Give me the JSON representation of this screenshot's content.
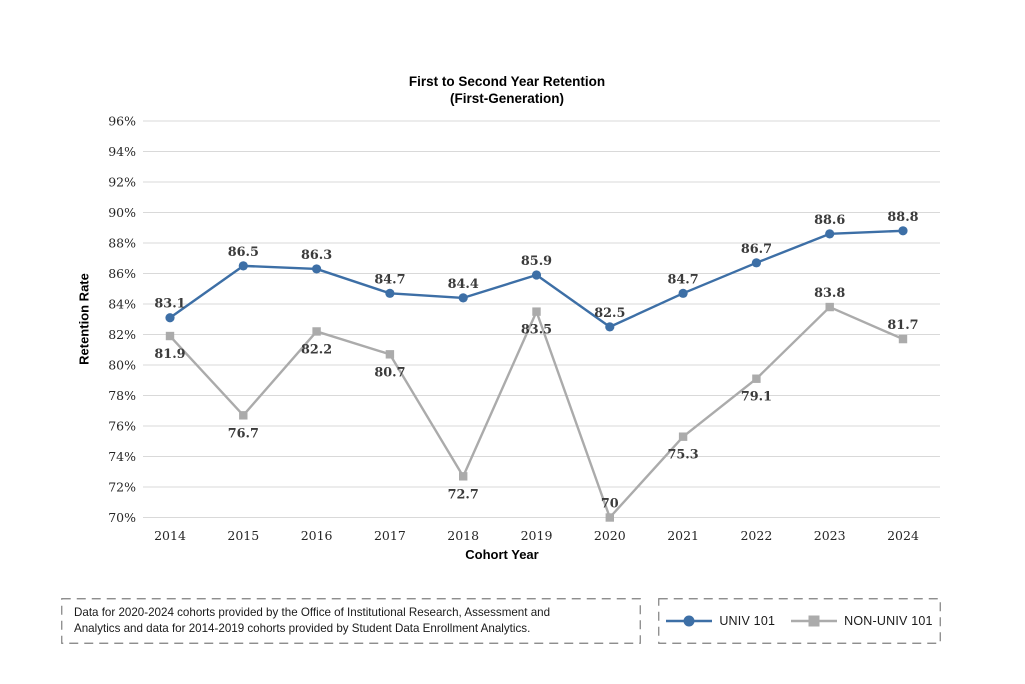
{
  "chart": {
    "title_line1": "First to Second Year Retention",
    "title_line2": "(First-Generation)",
    "y_axis_title": "Retention Rate",
    "x_axis_title": "Cohort Year"
  },
  "chart_data": {
    "type": "line",
    "title": "First to Second Year Retention (First-Generation)",
    "xlabel": "Cohort Year",
    "ylabel": "Retention Rate",
    "categories": [
      "2014",
      "2015",
      "2016",
      "2017",
      "2018",
      "2019",
      "2020",
      "2021",
      "2022",
      "2023",
      "2024"
    ],
    "series": [
      {
        "name": "UNIV 101",
        "color": "#3D6FA6",
        "marker": "circle",
        "values": [
          83.1,
          86.5,
          86.3,
          84.7,
          84.4,
          85.9,
          82.5,
          84.7,
          86.7,
          88.6,
          88.8
        ],
        "label_positions": [
          "above",
          "above",
          "above",
          "above",
          "above",
          "above",
          "above",
          "above",
          "above",
          "above",
          "above"
        ]
      },
      {
        "name": "NON-UNIV 101",
        "color": "#ABABAB",
        "marker": "square",
        "values": [
          81.9,
          76.7,
          82.2,
          80.7,
          72.7,
          83.5,
          70,
          75.3,
          79.1,
          83.8,
          81.7
        ],
        "label_positions": [
          "below",
          "below",
          "below",
          "below",
          "below",
          "below",
          "above",
          "below",
          "below",
          "above",
          "above"
        ]
      }
    ],
    "ylim": [
      70,
      96
    ],
    "ytick_step": 2,
    "ytick_suffix": "%",
    "grid": "horizontal",
    "gridline_color": "#D9D9D9",
    "tick_label_color": "#262626",
    "data_label_color": "#3B3B3B",
    "legend_position": "bottom-right"
  },
  "footnote": {
    "line1": "Data for 2020-2024 cohorts provided by the Office of Institutional Research, Assessment and",
    "line2": "Analytics and data for 2014-2019 cohorts provided by Student Data Enrollment Analytics."
  }
}
